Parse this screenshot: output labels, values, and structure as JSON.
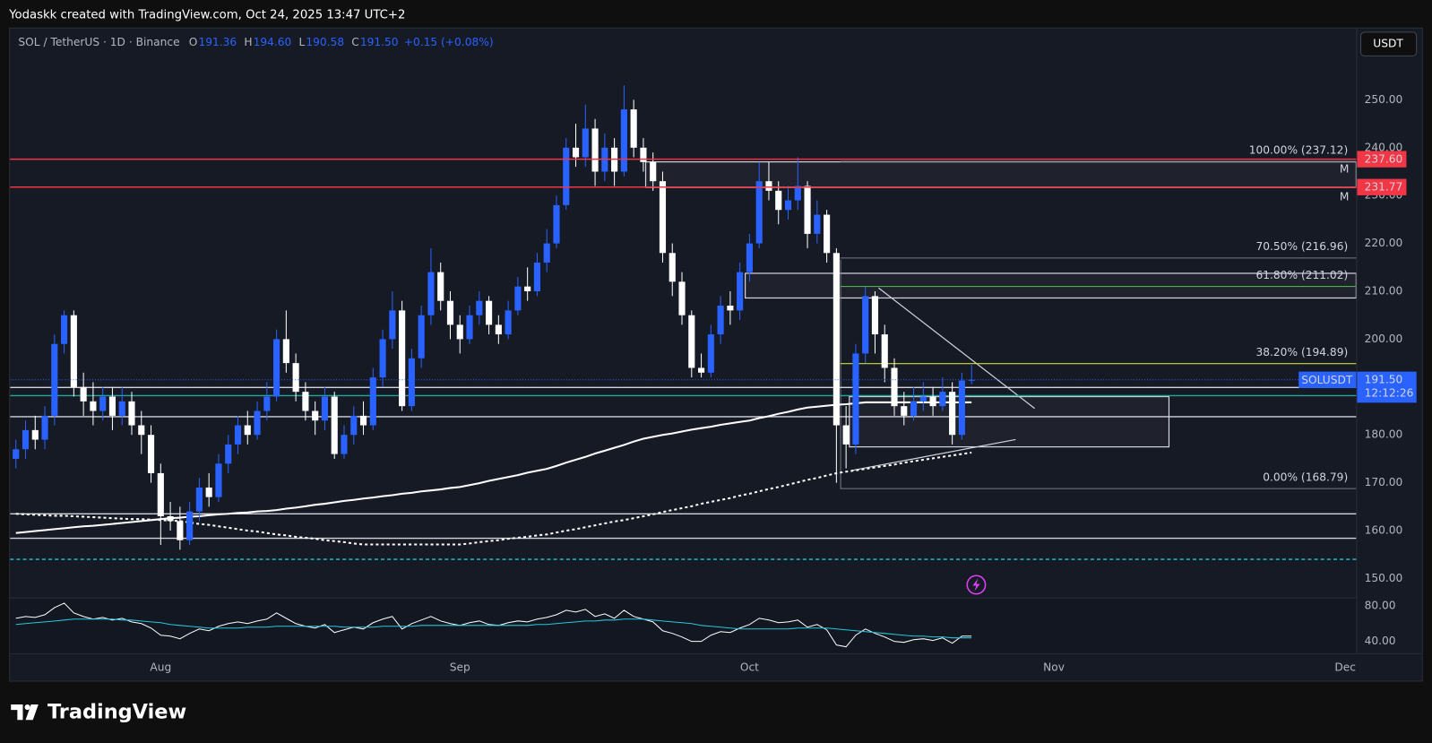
{
  "attribution": "Yodaskk created with TradingView.com, Oct 24, 2025 13:47 UTC+2",
  "brand": "TradingView",
  "chart_data": {
    "type": "candlestick",
    "symbol": "SOL / TetherUS · 1D · Binance",
    "ohlc": [
      {
        "key": "O",
        "value": "191.36"
      },
      {
        "key": "H",
        "value": "194.60"
      },
      {
        "key": "L",
        "value": "190.58"
      },
      {
        "key": "C",
        "value": "191.50"
      }
    ],
    "change": "+0.15 (+0.08%)",
    "currency": "USDT",
    "up_color": "#2962ff",
    "down_color": "#ffffff",
    "categories": [
      null,
      null,
      null,
      null,
      null,
      null,
      null,
      null,
      null,
      null,
      null,
      null,
      null,
      null,
      null,
      "Aug",
      null,
      null,
      null,
      null,
      null,
      null,
      null,
      null,
      null,
      null,
      null,
      null,
      null,
      null,
      null,
      null,
      null,
      null,
      null,
      null,
      null,
      null,
      null,
      null,
      null,
      null,
      null,
      null,
      null,
      null,
      "Sep",
      null,
      null,
      null,
      null,
      null,
      null,
      null,
      null,
      null,
      null,
      null,
      null,
      null,
      null,
      null,
      null,
      null,
      null,
      null,
      null,
      null,
      null,
      null,
      null,
      null,
      null,
      null,
      null,
      null,
      "Oct",
      null,
      null,
      null,
      null,
      null,
      null,
      null,
      null,
      null,
      null,
      null,
      null,
      null,
      null,
      null,
      null,
      null,
      null,
      null,
      null,
      null,
      null,
      null
    ],
    "extra_months": [
      "Nov",
      "Dec"
    ],
    "open": [
      175,
      177,
      181,
      179,
      184,
      199,
      205,
      190,
      187,
      185,
      188,
      184,
      187,
      182,
      180,
      172,
      163,
      162,
      158,
      164,
      169,
      167,
      174,
      178,
      182,
      180,
      185,
      188,
      200,
      195,
      189,
      185,
      183,
      188,
      176,
      180,
      184,
      182,
      192,
      200,
      206,
      186,
      196,
      205,
      214,
      208,
      203,
      200,
      205,
      208,
      203,
      201,
      206,
      211,
      210,
      216,
      220,
      228,
      240,
      238,
      244,
      235,
      240,
      235,
      248,
      240,
      237,
      233,
      218,
      212,
      205,
      194,
      193,
      201,
      207,
      206,
      214,
      220,
      233,
      231,
      227,
      229,
      232,
      222,
      226,
      218,
      182,
      178,
      197,
      209,
      201,
      194,
      186,
      184,
      187,
      188,
      186,
      189,
      180,
      191.36
    ],
    "high": [
      179,
      183,
      184,
      186,
      201,
      206,
      206,
      193,
      191,
      190,
      190,
      190,
      189,
      185,
      182,
      174,
      166,
      165,
      166,
      171,
      172,
      176,
      180,
      184,
      185,
      187,
      191,
      202,
      206,
      197,
      191,
      187,
      190,
      189,
      182,
      186,
      187,
      194,
      202,
      210,
      208,
      198,
      207,
      219,
      216,
      210,
      205,
      207,
      210,
      209,
      205,
      208,
      213,
      215,
      218,
      223,
      230,
      242,
      245,
      249,
      246,
      243,
      242,
      253,
      250,
      242,
      239,
      235,
      220,
      214,
      206,
      197,
      203,
      209,
      210,
      216,
      222,
      237,
      237,
      233,
      232,
      238,
      233,
      229,
      227,
      219,
      186,
      199,
      211,
      210,
      203,
      196,
      189,
      190,
      191,
      190,
      192,
      191,
      193,
      194.6
    ],
    "low": [
      173,
      175,
      177,
      177,
      182,
      197,
      188,
      184,
      182,
      183,
      181,
      182,
      180,
      176,
      170,
      157,
      160,
      156,
      157,
      162,
      165,
      166,
      172,
      176,
      178,
      179,
      183,
      187,
      193,
      187,
      183,
      180,
      181,
      175,
      175,
      178,
      180,
      181,
      190,
      198,
      185,
      185,
      194,
      203,
      206,
      200,
      197,
      199,
      203,
      201,
      199,
      200,
      205,
      208,
      209,
      214,
      219,
      227,
      236,
      236,
      232,
      233,
      232,
      234,
      238,
      235,
      231,
      216,
      209,
      203,
      192,
      192,
      192,
      199,
      203,
      204,
      212,
      219,
      229,
      224,
      225,
      227,
      219,
      220,
      216,
      170,
      173,
      176,
      195,
      197,
      191,
      184,
      182,
      183,
      185,
      184,
      185,
      178,
      179,
      190.58
    ],
    "close": [
      177,
      181,
      179,
      184,
      199,
      205,
      190,
      187,
      185,
      188,
      184,
      187,
      182,
      180,
      172,
      163,
      162,
      158,
      164,
      169,
      167,
      174,
      178,
      182,
      180,
      185,
      188,
      200,
      195,
      189,
      185,
      183,
      188,
      176,
      180,
      184,
      182,
      192,
      200,
      206,
      186,
      196,
      205,
      214,
      208,
      203,
      200,
      205,
      208,
      203,
      201,
      206,
      211,
      210,
      216,
      220,
      228,
      240,
      238,
      244,
      235,
      240,
      235,
      248,
      240,
      237,
      233,
      218,
      212,
      205,
      194,
      193,
      201,
      207,
      206,
      214,
      220,
      233,
      231,
      227,
      229,
      232,
      222,
      226,
      218,
      182,
      178,
      197,
      209,
      201,
      194,
      186,
      184,
      187,
      188,
      186,
      189,
      180,
      191.36,
      191.5
    ],
    "ma_lines": [
      {
        "color": "#ffffff",
        "dashed": false,
        "values": [
          159.5,
          159.7,
          159.9,
          160.1,
          160.3,
          160.5,
          160.7,
          160.9,
          161.0,
          161.2,
          161.4,
          161.6,
          161.8,
          162.0,
          162.2,
          162.4,
          162.6,
          162.7,
          162.9,
          163.0,
          163.2,
          163.4,
          163.5,
          163.7,
          163.8,
          164.0,
          164.1,
          164.3,
          164.6,
          164.8,
          165.1,
          165.4,
          165.6,
          165.9,
          166.2,
          166.4,
          166.7,
          166.9,
          167.2,
          167.4,
          167.7,
          167.9,
          168.2,
          168.4,
          168.6,
          168.9,
          169.1,
          169.5,
          169.9,
          170.4,
          170.8,
          171.2,
          171.6,
          172.1,
          172.5,
          172.9,
          173.5,
          174.2,
          174.8,
          175.4,
          176.1,
          176.7,
          177.3,
          177.9,
          178.6,
          179.2,
          179.6,
          180.0,
          180.3,
          180.7,
          181.1,
          181.4,
          181.7,
          182.1,
          182.4,
          182.7,
          183.0,
          183.5,
          183.9,
          184.4,
          184.8,
          185.3,
          185.7,
          185.9,
          186.1,
          186.3,
          186.4,
          186.6,
          186.8,
          186.8,
          186.8,
          186.8,
          186.8,
          186.8,
          186.8,
          186.8,
          186.8,
          186.8,
          186.8,
          186.8
        ]
      },
      {
        "color": "#ffffff",
        "dashed": true,
        "values": [
          163.5,
          163.4,
          163.3,
          163.2,
          163.1,
          163.1,
          163.0,
          162.9,
          162.8,
          162.7,
          162.6,
          162.5,
          162.4,
          162.4,
          162.3,
          162.2,
          162.1,
          162.0,
          161.7,
          161.4,
          161.2,
          160.9,
          160.6,
          160.3,
          160.0,
          159.8,
          159.5,
          159.2,
          159.0,
          158.7,
          158.5,
          158.3,
          158.0,
          157.8,
          157.6,
          157.3,
          157.1,
          157.1,
          157.1,
          157.1,
          157.1,
          157.1,
          157.1,
          157.1,
          157.1,
          157.1,
          157.1,
          157.3,
          157.6,
          157.8,
          158.0,
          158.3,
          158.5,
          158.7,
          159.0,
          159.2,
          159.6,
          160.0,
          160.3,
          160.7,
          161.1,
          161.5,
          161.9,
          162.2,
          162.6,
          163.0,
          163.4,
          163.9,
          164.3,
          164.7,
          165.1,
          165.6,
          166.0,
          166.4,
          166.8,
          167.3,
          167.7,
          168.2,
          168.7,
          169.1,
          169.6,
          170.1,
          170.6,
          171.0,
          171.5,
          172.0,
          172.3,
          172.6,
          172.9,
          173.2,
          173.5,
          173.8,
          174.2,
          174.5,
          174.8,
          175.1,
          175.4,
          175.7,
          176.0,
          176.3
        ]
      }
    ],
    "ylim": [
      146.2,
      264.9
    ],
    "yticks": [
      {
        "value": 150,
        "label": "150.00"
      },
      {
        "value": 160,
        "label": "160.00"
      },
      {
        "value": 170,
        "label": "170.00"
      },
      {
        "value": 180,
        "label": "180.00"
      },
      {
        "value": 190,
        "label": "190.00"
      },
      {
        "value": 200,
        "label": "200.00"
      },
      {
        "value": 210,
        "label": "210.00"
      },
      {
        "value": 220,
        "label": "220.00"
      },
      {
        "value": 230,
        "label": "230.00"
      },
      {
        "value": 240,
        "label": "240.00"
      },
      {
        "value": 250,
        "label": "250.00"
      }
    ],
    "grid": false,
    "levels": [
      {
        "value": 237.6,
        "label": "237.60",
        "color": "#f23645",
        "marker": "M"
      },
      {
        "value": 231.77,
        "label": "231.77",
        "color": "#f23645",
        "marker": "M"
      }
    ],
    "hlines": [
      {
        "value": 189.9,
        "color": "#d1d4dc",
        "dashed": false
      },
      {
        "value": 188.2,
        "color": "#26a69a",
        "dashed": false
      },
      {
        "value": 183.8,
        "color": "#d1d4dc",
        "dashed": false
      },
      {
        "value": 163.5,
        "color": "#d1d4dc",
        "dashed": false
      },
      {
        "value": 158.4,
        "color": "#d1d4dc",
        "dashed": false
      },
      {
        "value": 154,
        "color": "#26c6da",
        "dashed": true
      }
    ],
    "fib": [
      {
        "label": "100.00% (237.12)",
        "value": 237.12,
        "color": "#787b86"
      },
      {
        "label": "70.50% (216.96)",
        "value": 216.96,
        "color": "#787b86"
      },
      {
        "label": "61.80% (211.02)",
        "value": 211.02,
        "color": "#4caf50"
      },
      {
        "label": "38.20% (194.89)",
        "value": 194.89,
        "color": "#cddc39"
      },
      {
        "label": "0.00% (168.79)",
        "value": 168.79,
        "color": "#787b86"
      }
    ],
    "last_price": {
      "value": 191.5,
      "label": "191.50",
      "symbol": "SOLUSDT",
      "countdown": "12:12:26",
      "color": "#2962ff"
    },
    "rsi": {
      "ylim": [
        26.7,
        88.2
      ],
      "yticks": [
        {
          "value": 80,
          "label": "80.00"
        },
        {
          "value": 40,
          "label": "40.00"
        }
      ],
      "series": [
        {
          "color": "#ffffff",
          "values": [
            66,
            68,
            67,
            70,
            78,
            83,
            72,
            68,
            65,
            67,
            64,
            66,
            62,
            60,
            55,
            47,
            46,
            43,
            49,
            54,
            52,
            57,
            60,
            62,
            60,
            63,
            65,
            72,
            66,
            60,
            57,
            55,
            59,
            50,
            53,
            56,
            54,
            61,
            65,
            68,
            54,
            60,
            64,
            68,
            63,
            60,
            58,
            61,
            63,
            59,
            58,
            61,
            63,
            62,
            65,
            67,
            70,
            75,
            73,
            76,
            68,
            71,
            66,
            75,
            68,
            65,
            62,
            52,
            49,
            45,
            40,
            40,
            47,
            51,
            50,
            55,
            59,
            66,
            64,
            61,
            62,
            64,
            56,
            59,
            53,
            36,
            34,
            47,
            54,
            49,
            45,
            40,
            39,
            42,
            43,
            41,
            44,
            38,
            46,
            46
          ]
        },
        {
          "color": "#26c6da",
          "values": [
            59,
            60,
            61,
            62,
            63,
            64,
            65,
            65,
            65,
            65,
            65,
            64,
            64,
            63,
            62,
            61,
            59,
            58,
            57,
            56,
            55,
            55,
            55,
            55,
            56,
            56,
            56,
            57,
            57,
            57,
            57,
            57,
            57,
            57,
            56,
            56,
            56,
            56,
            57,
            57,
            57,
            57,
            58,
            58,
            58,
            58,
            58,
            58,
            58,
            58,
            58,
            58,
            58,
            58,
            59,
            59,
            60,
            61,
            62,
            63,
            63,
            64,
            64,
            65,
            65,
            65,
            64,
            63,
            62,
            61,
            60,
            58,
            57,
            56,
            55,
            54,
            54,
            54,
            54,
            54,
            54,
            55,
            55,
            55,
            55,
            54,
            53,
            52,
            51,
            50,
            49,
            48,
            47,
            46,
            46,
            45,
            45,
            44,
            44,
            44
          ]
        }
      ]
    }
  }
}
